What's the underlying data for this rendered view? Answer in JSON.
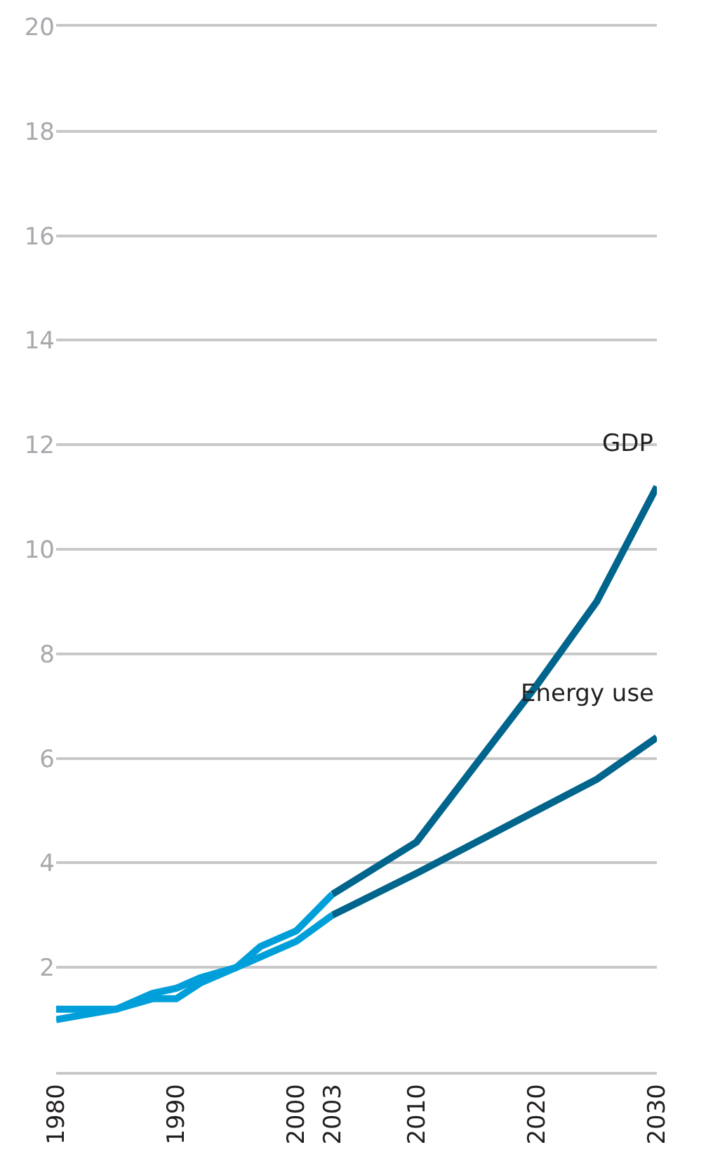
{
  "chart_data": {
    "type": "line",
    "series": [
      {
        "color": "#009fda",
        "x": [
          1980,
          1985,
          1988,
          1990,
          1992,
          1995,
          1997,
          2000,
          2003
        ],
        "values": [
          1.0,
          1.2,
          1.4,
          1.4,
          1.7,
          2.0,
          2.4,
          2.7,
          3.4
        ]
      },
      {
        "color": "#009fda",
        "x": [
          1980,
          1985,
          1988,
          1990,
          1992,
          1995,
          1997,
          2000,
          2003
        ],
        "values": [
          1.2,
          1.2,
          1.5,
          1.6,
          1.8,
          2.0,
          2.2,
          2.5,
          3.0
        ]
      },
      {
        "color": "#00658c",
        "x": [
          2003,
          2010,
          2015,
          2020,
          2025,
          2030
        ],
        "values": [
          3.4,
          4.4,
          5.9,
          7.4,
          9.0,
          11.2
        ]
      },
      {
        "color": "#00658c",
        "x": [
          2003,
          2010,
          2015,
          2020,
          2025,
          2030
        ],
        "values": [
          3.0,
          3.8,
          4.4,
          5.0,
          5.6,
          6.4
        ]
      }
    ],
    "annotations": [
      "GDP",
      "Energy use"
    ],
    "xlim": [
      1980,
      2030
    ],
    "xticks": [
      1980,
      1990,
      2000,
      2003,
      2010,
      2020,
      2030
    ],
    "ylim": [
      0,
      20
    ],
    "yticks": [
      {
        "value": 0,
        "label": null
      },
      2,
      4,
      6,
      8,
      10,
      12,
      14,
      16,
      18,
      20
    ],
    "grid": "y",
    "marker": "none",
    "line_style": "solid"
  }
}
